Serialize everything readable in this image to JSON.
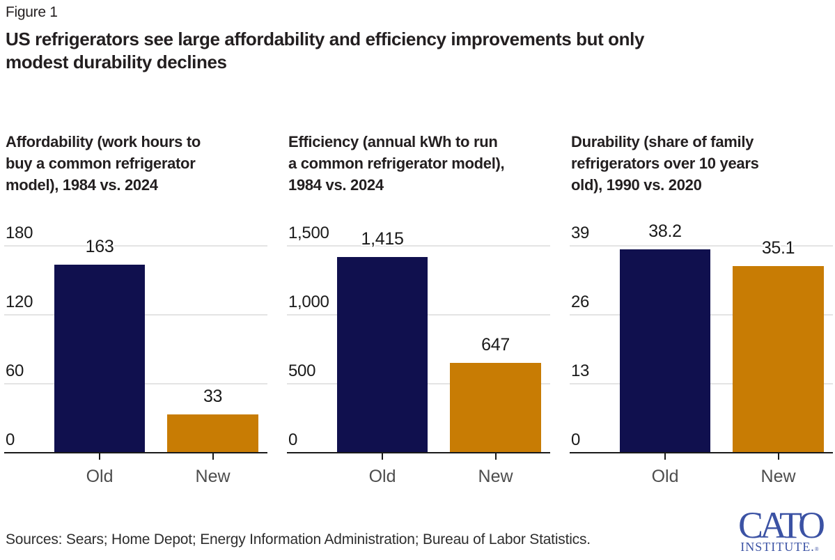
{
  "figure_label": "Figure 1",
  "title": "US refrigerators see large affordability and efficiency improvements but only\nmodest durability declines",
  "sources": "Sources: Sears; Home Depot; Energy Information Administration; Bureau of Labor Statistics.",
  "logo": {
    "name": "CATO",
    "subtitle": "INSTITUTE.",
    "registered": "®",
    "color": "#3b52a4"
  },
  "colors": {
    "old_bar": "#10104e",
    "new_bar": "#c87c04",
    "gridline": "#e4e4e4",
    "axis_line": "#1a1a1a",
    "tick_text": "#1a1a1a",
    "category_text": "#4d4d4d",
    "title_text": "#231f20"
  },
  "chart_data": [
    {
      "type": "bar",
      "title": "Affordability (work hours to\nbuy a common refrigerator\nmodel), 1984 vs. 2024",
      "categories": [
        "Old",
        "New"
      ],
      "values": [
        163,
        33
      ],
      "value_labels": [
        "163",
        "33"
      ],
      "ylim": [
        0,
        180
      ],
      "yticks": [
        0,
        60,
        120,
        180
      ],
      "ytick_labels_top_down": [
        "180",
        "120",
        "60",
        "0"
      ],
      "bar_colors": [
        "#10104e",
        "#c87c04"
      ],
      "grid": true,
      "legend_position": "none"
    },
    {
      "type": "bar",
      "title": "Efficiency (annual kWh to run\na common refrigerator model),\n1984 vs. 2024",
      "categories": [
        "Old",
        "New"
      ],
      "values": [
        1415,
        647
      ],
      "value_labels": [
        "1,415",
        "647"
      ],
      "ylim": [
        0,
        1500
      ],
      "yticks": [
        0,
        500,
        1000,
        1500
      ],
      "ytick_labels_top_down": [
        "1,500",
        "1,000",
        "500",
        "0"
      ],
      "bar_colors": [
        "#10104e",
        "#c87c04"
      ],
      "grid": true,
      "legend_position": "none"
    },
    {
      "type": "bar",
      "title": "Durability (share of family\nrefrigerators over 10 years\nold), 1990 vs. 2020",
      "categories": [
        "Old",
        "New"
      ],
      "values": [
        38.2,
        35.1
      ],
      "value_labels": [
        "38.2",
        "35.1"
      ],
      "ylim": [
        0,
        39
      ],
      "yticks": [
        0,
        13,
        26,
        39
      ],
      "ytick_labels_top_down": [
        "39",
        "26",
        "13",
        "0"
      ],
      "bar_colors": [
        "#10104e",
        "#c87c04"
      ],
      "grid": true,
      "legend_position": "none"
    }
  ]
}
